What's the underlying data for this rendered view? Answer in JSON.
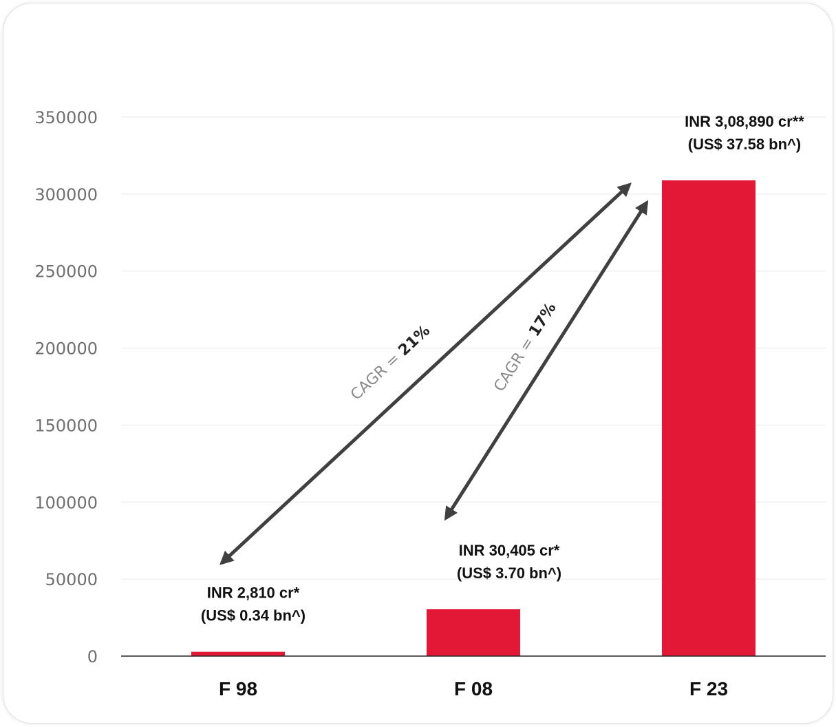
{
  "colors": {
    "bar": "#e31837",
    "arrow": "#404040",
    "grid": "#ececec",
    "axis": "#222222"
  },
  "chart_data": {
    "type": "bar",
    "categories": [
      "F 98",
      "F 08",
      "F 23"
    ],
    "values": [
      2810,
      30405,
      308890
    ],
    "ylim": [
      0,
      350000
    ],
    "yticks": [
      "0",
      "50000",
      "100000",
      "150000",
      "200000",
      "250000",
      "300000",
      "350000"
    ],
    "grid": true,
    "data_labels": [
      [
        "INR 2,810 cr*",
        "(US$ 0.34 bn^)"
      ],
      [
        "INR 30,405 cr*",
        "(US$ 3.70 bn^)"
      ],
      [
        "INR 3,08,890 cr**",
        "(US$ 37.58 bn^)"
      ]
    ],
    "annotations": [
      {
        "from": "F 98",
        "to": "F 23",
        "prefix": "CAGR = ",
        "value": "21%"
      },
      {
        "from": "F 08",
        "to": "F 23",
        "prefix": "CAGR = ",
        "value": "17%"
      }
    ]
  }
}
